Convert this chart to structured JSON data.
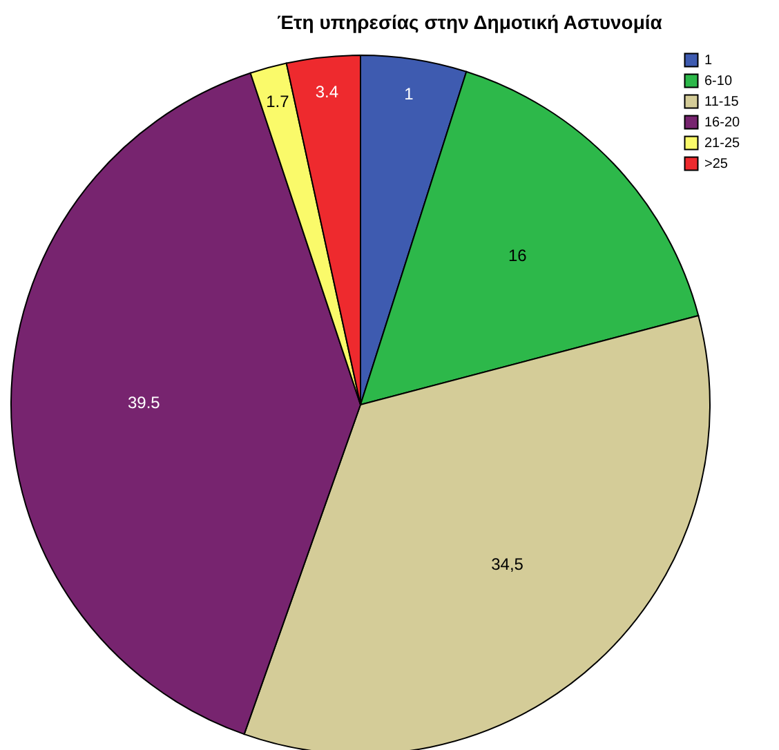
{
  "chart_data": {
    "type": "pie",
    "title": "Έτη υπηρεσίας στην Δημοτική Αστυνομία",
    "categories": [
      "1",
      "6-10",
      "11-15",
      "16-20",
      "21-25",
      ">25"
    ],
    "values": [
      4.9,
      16,
      34.5,
      39.5,
      1.7,
      3.4
    ],
    "value_labels": [
      null,
      "16",
      "34,5",
      "39.5",
      "1.7",
      "3.4"
    ],
    "annotations": [
      {
        "text": "1",
        "x": "1"
      }
    ],
    "colors": [
      "#3e5bb0",
      "#2db84a",
      "#d4cc98",
      "#77246f",
      "#fafa6a",
      "#ee2a2e"
    ],
    "legend": "top right"
  }
}
